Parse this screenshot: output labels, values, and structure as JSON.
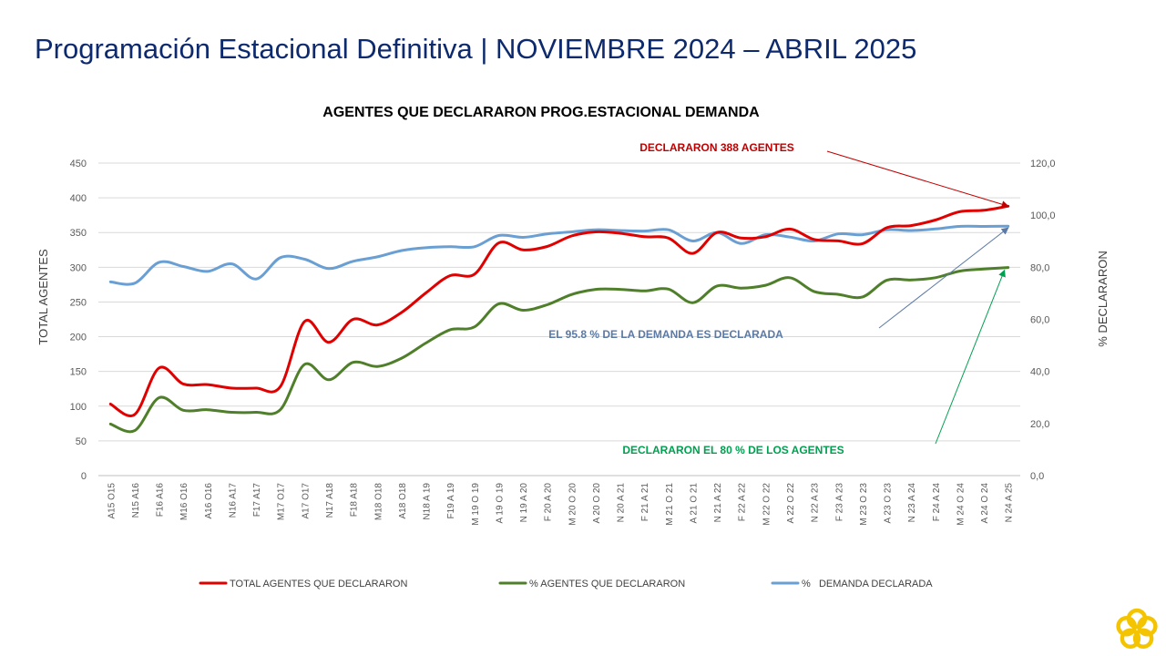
{
  "page": {
    "title": "Programación Estacional Definitiva | NOVIEMBRE 2024 – ABRIL 2025"
  },
  "chart_data": {
    "type": "line",
    "title": "AGENTES QUE DECLARARON PROG.ESTACIONAL DEMANDA",
    "ylabel": "TOTAL AGENTES",
    "y2label": "% DECLARARON",
    "ylim": [
      0,
      450
    ],
    "y_ticks": [
      "0",
      "50",
      "100",
      "150",
      "200",
      "250",
      "300",
      "350",
      "400",
      "450"
    ],
    "y2lim": [
      0,
      120
    ],
    "y2_ticks": [
      "0,0",
      "20,0",
      "40,0",
      "60,0",
      "80,0",
      "100,0",
      "120,0"
    ],
    "grid": true,
    "legend_position": "bottom",
    "categories": [
      "A15 O15",
      "N15 A16",
      "F16 A16",
      "M16 O16",
      "A16 O16",
      "N16 A17",
      "F17 A17",
      "M17 O17",
      "A17 O17",
      "N17 A18",
      "F18 A18",
      "M18 O18",
      "A18 O18",
      "N18 A 19",
      "F19 A 19",
      "M 19 O 19",
      "A 19 O 19",
      "N 19 A 20",
      "F 20 A 20",
      "M 20 O 20",
      "A 20 O 20",
      "N 20 A 21",
      "F 21 A 21",
      "M 21 O 21",
      "A 21 O 21",
      "N 21 A 22",
      "F 22 A 22",
      "M 22 O 22",
      "A 22 O 22",
      "N 22 A 23",
      "F 23 A 23",
      "M 23 O 23",
      "A 23 O 23",
      "N 23 A 24",
      "F 24 A 24",
      "M 24 O 24",
      "A 24 O 24",
      "N 24 A 25"
    ],
    "series": [
      {
        "name": "TOTAL AGENTES QUE DECLARARON",
        "axis": "left",
        "color": "#e00000",
        "values": [
          103,
          88,
          155,
          132,
          131,
          126,
          126,
          128,
          222,
          192,
          225,
          217,
          235,
          263,
          288,
          290,
          335,
          325,
          330,
          345,
          351,
          349,
          344,
          342,
          320,
          350,
          342,
          344,
          355,
          340,
          338,
          334,
          357,
          360,
          368,
          380,
          382,
          388
        ]
      },
      {
        "name": "% AGENTES QUE DECLARARON",
        "axis": "right",
        "color": "#4f7f2a",
        "values": [
          19.8,
          17.3,
          29.9,
          25.1,
          25.3,
          24.3,
          24.3,
          25.3,
          42.7,
          36.8,
          43.5,
          41.9,
          45.1,
          50.9,
          56.0,
          57.1,
          65.9,
          63.5,
          65.6,
          69.5,
          71.5,
          71.5,
          70.9,
          71.6,
          66.4,
          72.8,
          72.0,
          73.1,
          76.0,
          70.7,
          69.6,
          68.6,
          75.0,
          75.1,
          76.0,
          78.5,
          79.3,
          79.9
        ]
      },
      {
        "name": "%   DEMANDA DECLARADA",
        "axis": "right",
        "color": "#6a9fd4",
        "values": [
          74.4,
          73.9,
          81.9,
          80.3,
          78.4,
          81.3,
          75.5,
          83.7,
          83.1,
          79.5,
          82.3,
          84.0,
          86.4,
          87.5,
          87.9,
          87.9,
          92.2,
          91.5,
          92.8,
          93.6,
          94.4,
          94.1,
          93.9,
          94.4,
          90.1,
          93.3,
          89.1,
          92.5,
          91.6,
          90.1,
          92.8,
          92.5,
          94.4,
          94.1,
          94.7,
          95.7,
          95.7,
          95.8
        ]
      }
    ],
    "annotations": [
      {
        "text": "DECLARARON 388 AGENTES",
        "color": "#c00000"
      },
      {
        "text": "EL 95.8 % DE LA DEMANDA ES DECLARADA",
        "color": "#5b7aa5"
      },
      {
        "text": "DECLARARON EL 80 % DE LOS AGENTES",
        "color": "#00a050"
      }
    ]
  },
  "logo": {
    "color": "#f5c400",
    "icon": "flower-logo-icon"
  }
}
